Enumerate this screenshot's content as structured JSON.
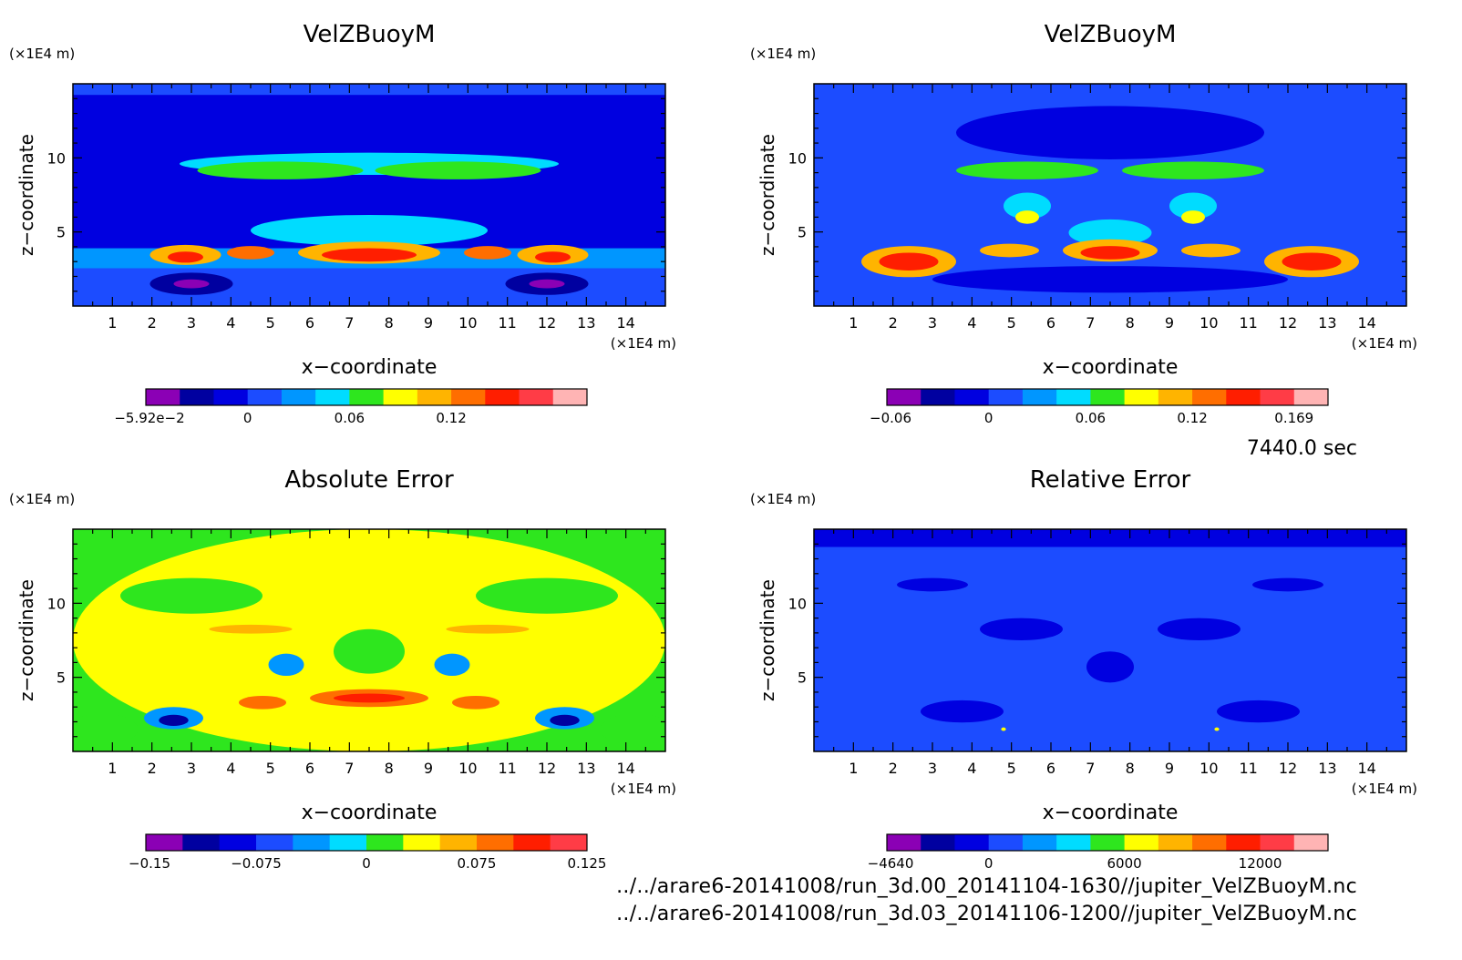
{
  "time_label": "7440.0 sec",
  "footer": {
    "line1": "../../arare6-20141008/run_3d.00_20141104-1630//jupiter_VelZBuoyM.nc",
    "line2": "../../arare6-20141008/run_3d.03_20141106-1200//jupiter_VelZBuoyM.nc"
  },
  "axis_unit": "(×1E4 m)",
  "xlabel": "x−coordinate",
  "ylabel": "z−coordinate",
  "chart_data": [
    {
      "type": "heatmap",
      "title": "VelZBuoyM",
      "xlim": [
        0,
        15
      ],
      "ylim": [
        0,
        15
      ],
      "xticks": [
        "1",
        "2",
        "3",
        "4",
        "5",
        "6",
        "7",
        "8",
        "9",
        "10",
        "11",
        "12",
        "13",
        "14"
      ],
      "yticks": [
        "5",
        "10"
      ],
      "colorbar": {
        "colors": [
          "#8b00b5",
          "#0000a0",
          "#0000e0",
          "#1c4cff",
          "#0096ff",
          "#00dcff",
          "#2ee61e",
          "#ffff00",
          "#ffb400",
          "#ff6e00",
          "#ff1e00",
          "#ff3c46",
          "#ffb4b4"
        ],
        "tick_labels": [
          "−5.92e−2",
          "0",
          "0.06",
          "0.12"
        ]
      }
    },
    {
      "type": "heatmap",
      "title": "VelZBuoyM",
      "xlim": [
        0,
        15
      ],
      "ylim": [
        0,
        15
      ],
      "xticks": [
        "1",
        "2",
        "3",
        "4",
        "5",
        "6",
        "7",
        "8",
        "9",
        "10",
        "11",
        "12",
        "13",
        "14"
      ],
      "yticks": [
        "5",
        "10"
      ],
      "colorbar": {
        "colors": [
          "#8b00b5",
          "#0000a0",
          "#0000e0",
          "#1c4cff",
          "#0096ff",
          "#00dcff",
          "#2ee61e",
          "#ffff00",
          "#ffb400",
          "#ff6e00",
          "#ff1e00",
          "#ff3c46",
          "#ffb4b4"
        ],
        "tick_labels": [
          "−0.06",
          "0",
          "0.06",
          "0.12",
          "0.169"
        ]
      }
    },
    {
      "type": "heatmap",
      "title": "Absolute Error",
      "xlim": [
        0,
        15
      ],
      "ylim": [
        0,
        15
      ],
      "xticks": [
        "1",
        "2",
        "3",
        "4",
        "5",
        "6",
        "7",
        "8",
        "9",
        "10",
        "11",
        "12",
        "13",
        "14"
      ],
      "yticks": [
        "5",
        "10"
      ],
      "colorbar": {
        "colors": [
          "#8b00b5",
          "#0000a0",
          "#0000e0",
          "#1c4cff",
          "#0096ff",
          "#00dcff",
          "#2ee61e",
          "#ffff00",
          "#ffb400",
          "#ff6e00",
          "#ff1e00",
          "#ff3c46"
        ],
        "tick_labels": [
          "−0.15",
          "−0.075",
          "0",
          "0.075",
          "0.125"
        ]
      }
    },
    {
      "type": "heatmap",
      "title": "Relative Error",
      "xlim": [
        0,
        15
      ],
      "ylim": [
        0,
        15
      ],
      "xticks": [
        "1",
        "2",
        "3",
        "4",
        "5",
        "6",
        "7",
        "8",
        "9",
        "10",
        "11",
        "12",
        "13",
        "14"
      ],
      "yticks": [
        "5",
        "10"
      ],
      "colorbar": {
        "colors": [
          "#8b00b5",
          "#0000a0",
          "#0000e0",
          "#1c4cff",
          "#0096ff",
          "#00dcff",
          "#2ee61e",
          "#ffff00",
          "#ffb400",
          "#ff6e00",
          "#ff1e00",
          "#ff3c46",
          "#ffb4b4"
        ],
        "tick_labels": [
          "−4640",
          "0",
          "6000",
          "12000"
        ]
      }
    }
  ]
}
